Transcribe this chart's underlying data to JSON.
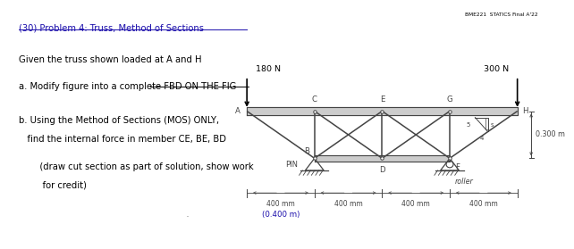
{
  "title_text": "(30) Problem 4: Truss, Method of Sections",
  "header_note": "BME221  STATICS Final A'22",
  "given_text": "Given the truss shown loaded at A and H",
  "part_a": "a. Modify figure into a complete FBD ON THE FIG",
  "part_b1": "b. Using the Method of Sections (MOS) ONLY,",
  "part_b2": "   find the internal force in member CE, BE, BD",
  "part_b3": "   (draw cut section as part of solution, show work",
  "part_b4": "    for credit)",
  "bg_color": "#ffffff",
  "text_color": "#000000",
  "truss_color": "#444444",
  "load_180": "180 N",
  "load_300": "300 N",
  "dim_label": "400 mm",
  "dim_label2": "(0.400 m)",
  "height_label": "0.300 m",
  "pin_label": "PIN",
  "roller_label": "roller",
  "slope_5": "5",
  "slope_4": "4",
  "slope_s": "s",
  "link_color": "#1a0dab"
}
